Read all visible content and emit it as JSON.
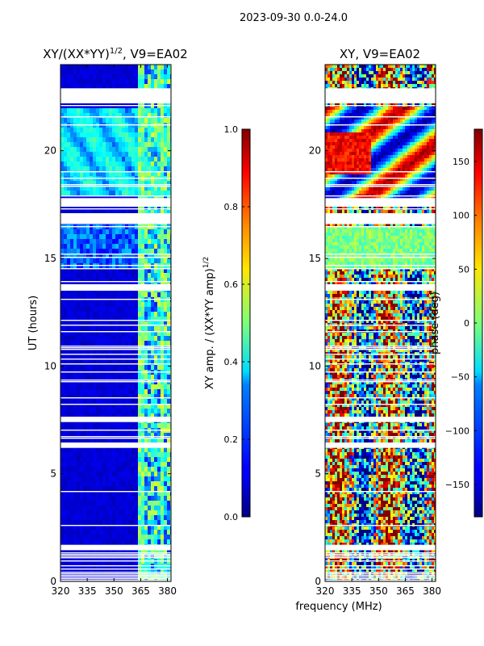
{
  "figure": {
    "suptitle": "2023-09-30 0.0-24.0",
    "xlabel": "frequency (MHz)"
  },
  "chart_data": [
    {
      "type": "heatmap",
      "title_main": "XY/(XX*YY)",
      "title_sup": "1/2",
      "title_rest": ", V9=EA02",
      "xlabel": "",
      "ylabel": "UT (hours)",
      "xlim": [
        320,
        382
      ],
      "ylim": [
        0,
        24
      ],
      "xticks": [
        "320",
        "335",
        "350",
        "365",
        "380"
      ],
      "yticks": [
        "0",
        "5",
        "10",
        "15",
        "20"
      ],
      "colormap": "jet",
      "colorbar": {
        "label_main": "XY amp. / (XX*YY amp)",
        "label_sup": "1/2",
        "vmin": 0.0,
        "vmax": 1.0,
        "ticks": [
          "0.0",
          "0.2",
          "0.4",
          "0.6",
          "0.8",
          "1.0"
        ]
      },
      "flagged_hours": [
        [
          22.2,
          22.9
        ],
        [
          17.4,
          17.8
        ],
        [
          16.6,
          17.1
        ],
        [
          13.5,
          13.8
        ],
        [
          7.4,
          7.6
        ],
        [
          6.2,
          6.4
        ],
        [
          1.5,
          1.7
        ]
      ]
    },
    {
      "type": "heatmap",
      "title_main": "XY, V9=EA02",
      "xlabel": "",
      "ylabel": "",
      "xlim": [
        320,
        382
      ],
      "ylim": [
        0,
        24
      ],
      "xticks": [
        "320",
        "335",
        "350",
        "365",
        "380"
      ],
      "yticks": [
        "0",
        "5",
        "10",
        "15",
        "20"
      ],
      "colormap": "jet",
      "colorbar": {
        "label_main": "phase (deg)",
        "vmin": -180,
        "vmax": 180,
        "ticks": [
          "-150",
          "-100",
          "-50",
          "0",
          "50",
          "100",
          "150"
        ]
      },
      "flagged_hours": [
        [
          22.2,
          22.9
        ],
        [
          17.4,
          17.8
        ],
        [
          16.6,
          17.1
        ],
        [
          13.5,
          13.8
        ],
        [
          7.4,
          7.6
        ],
        [
          6.2,
          6.4
        ],
        [
          1.5,
          1.7
        ]
      ]
    }
  ],
  "colors": {
    "jet_low": "#000080",
    "jet_high": "#800000",
    "flag": "#ffffff"
  }
}
